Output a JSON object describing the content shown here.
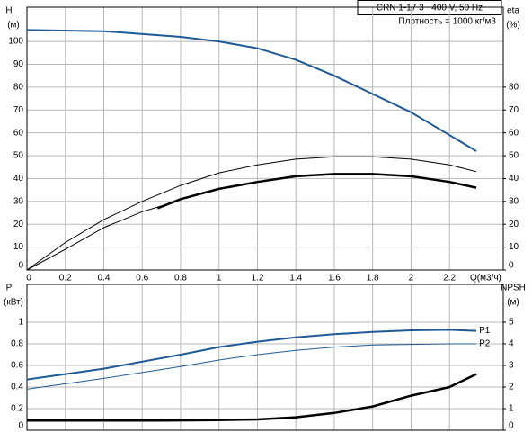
{
  "chart_data": [
    {
      "type": "line",
      "header": "CRN 1-17    3~ 400 V, 50 Hz",
      "note": "Плотность = 1000 кг/м3",
      "ylabel": [
        "H",
        "(м)"
      ],
      "y2label": [
        "eta",
        "(%)"
      ],
      "xlabel": "Q(м3/ч)",
      "xlim": [
        0,
        2.48
      ],
      "xticks": [
        0,
        0.2,
        0.4,
        0.6,
        0.8,
        1,
        1.2,
        1.4,
        1.6,
        1.8,
        2,
        2.2
      ],
      "ylim": [
        0,
        115
      ],
      "yticks": [
        0,
        10,
        20,
        30,
        40,
        50,
        60,
        70,
        80,
        90,
        100
      ],
      "y2lim": [
        0,
        115
      ],
      "y2ticks": [
        0,
        10,
        20,
        30,
        40,
        50,
        60,
        70,
        80
      ],
      "grid": true,
      "series": [
        {
          "color": "#1f5a96",
          "width": 2,
          "x": [
            0,
            0.4,
            0.8,
            1.0,
            1.2,
            1.4,
            1.6,
            1.8,
            2.0,
            2.2,
            2.34
          ],
          "values": [
            105,
            104.5,
            102,
            100,
            97,
            92,
            85,
            77,
            69,
            59,
            52
          ]
        },
        {
          "color": "#000000",
          "width": 1,
          "axis": "y2",
          "x": [
            0,
            0.2,
            0.4,
            0.6,
            0.8,
            1.0,
            1.2,
            1.4,
            1.6,
            1.8,
            2.0,
            2.2,
            2.34
          ],
          "values": [
            0,
            12,
            22,
            30,
            37,
            42.5,
            46,
            48.5,
            49.5,
            49.5,
            48.5,
            46,
            43
          ]
        },
        {
          "color": "#000000",
          "width": 1,
          "axis": "y2",
          "x": [
            0,
            0.2,
            0.4,
            0.6,
            0.7
          ],
          "values": [
            0,
            9,
            18.5,
            25.5,
            28
          ]
        },
        {
          "color": "#000000",
          "width": 2.5,
          "axis": "y2",
          "x": [
            0.68,
            0.8,
            1.0,
            1.2,
            1.4,
            1.6,
            1.8,
            2.0,
            2.2,
            2.34
          ],
          "values": [
            27,
            31,
            35.5,
            38.5,
            41,
            42,
            42,
            41,
            38.5,
            36
          ]
        }
      ]
    },
    {
      "type": "line",
      "ylabel": [
        "P",
        "(кВт)"
      ],
      "y2label": [
        "NPSH",
        "(м)"
      ],
      "xlim": [
        0,
        2.48
      ],
      "xticks": [
        0,
        0.2,
        0.4,
        0.6,
        0.8,
        1,
        1.2,
        1.4,
        1.6,
        1.8,
        2,
        2.2
      ],
      "ylim": [
        0,
        1.35
      ],
      "yticks": [
        0,
        0.2,
        0.4,
        0.6,
        0.8,
        1
      ],
      "y2lim": [
        0,
        6.75
      ],
      "y2ticks": [
        0,
        1,
        2,
        3,
        4,
        5
      ],
      "grid": true,
      "series": [
        {
          "name": "P1",
          "color": "#1f5a96",
          "width": 2,
          "x": [
            0,
            0.4,
            0.8,
            1.0,
            1.2,
            1.4,
            1.6,
            1.8,
            2.0,
            2.2,
            2.34
          ],
          "values": [
            0.47,
            0.57,
            0.7,
            0.77,
            0.82,
            0.86,
            0.89,
            0.91,
            0.925,
            0.93,
            0.92
          ]
        },
        {
          "name": "P2",
          "color": "#1f5a96",
          "width": 1,
          "x": [
            0,
            0.4,
            0.8,
            1.0,
            1.2,
            1.4,
            1.6,
            1.8,
            2.0,
            2.2,
            2.34
          ],
          "values": [
            0.38,
            0.48,
            0.59,
            0.65,
            0.7,
            0.74,
            0.77,
            0.79,
            0.795,
            0.8,
            0.8
          ]
        },
        {
          "color": "#000000",
          "width": 2.5,
          "axis": "y2",
          "x": [
            0,
            0.7,
            1.0,
            1.2,
            1.4,
            1.6,
            1.8,
            2.0,
            2.2,
            2.34
          ],
          "values": [
            0.45,
            0.45,
            0.47,
            0.5,
            0.6,
            0.8,
            1.1,
            1.6,
            2.0,
            2.6
          ]
        }
      ]
    }
  ]
}
